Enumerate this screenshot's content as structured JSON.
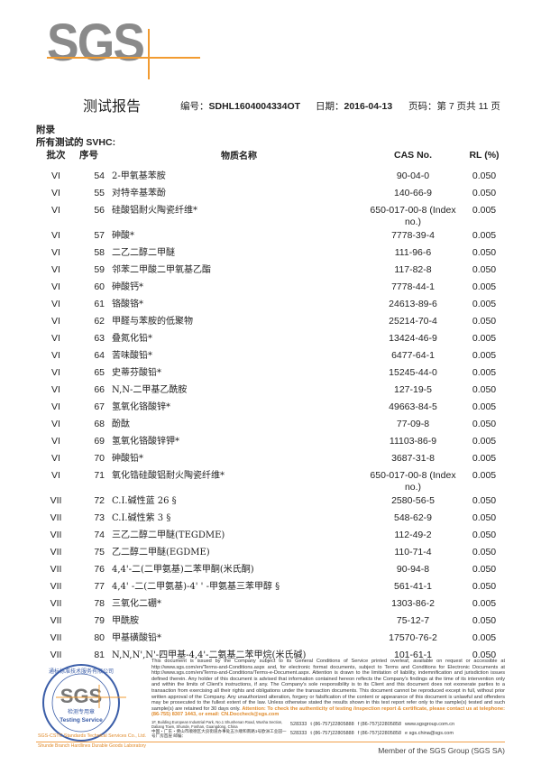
{
  "logo": {
    "text": "SGS",
    "accent_color": "#f29b30",
    "text_color": "#8a8a8a"
  },
  "header": {
    "title": "测试报告",
    "report_no_label": "编号：",
    "report_no": "SDHL1604004334OT",
    "date_label": "日期：",
    "date": "2016-04-13",
    "page_label": "页码：",
    "page_text": "第 7 页共 11 页"
  },
  "section": {
    "appendix": "附录",
    "subtitle": "所有测试的 SVHC:"
  },
  "table": {
    "headers": {
      "batch": "批次",
      "no": "序号",
      "name": "物质名称",
      "cas": "CAS No.",
      "rl": "RL (%)"
    },
    "rows": [
      {
        "batch": "VI",
        "no": "54",
        "name": "2-甲氧基苯胺",
        "cas": "90-04-0",
        "rl": "0.050"
      },
      {
        "batch": "VI",
        "no": "55",
        "name": "对特辛基苯酚",
        "cas": "140-66-9",
        "rl": "0.050"
      },
      {
        "batch": "VI",
        "no": "56",
        "name": "硅酸铝耐火陶瓷纤维*",
        "cas": "650-017-00-8 (Index no.)",
        "rl": "0.005"
      },
      {
        "batch": "VI",
        "no": "57",
        "name": "砷酸*",
        "cas": "7778-39-4",
        "rl": "0.005"
      },
      {
        "batch": "VI",
        "no": "58",
        "name": "二乙二醇二甲醚",
        "cas": "111-96-6",
        "rl": "0.050"
      },
      {
        "batch": "VI",
        "no": "59",
        "name": "邻苯二甲酸二甲氧基乙酯",
        "cas": "117-82-8",
        "rl": "0.050"
      },
      {
        "batch": "VI",
        "no": "60",
        "name": "砷酸钙*",
        "cas": "7778-44-1",
        "rl": "0.005"
      },
      {
        "batch": "VI",
        "no": "61",
        "name": "铬酸铬*",
        "cas": "24613-89-6",
        "rl": "0.005"
      },
      {
        "batch": "VI",
        "no": "62",
        "name": "甲醛与苯胺的低聚物",
        "cas": "25214-70-4",
        "rl": "0.050"
      },
      {
        "batch": "VI",
        "no": "63",
        "name": "叠氮化铅*",
        "cas": "13424-46-9",
        "rl": "0.005"
      },
      {
        "batch": "VI",
        "no": "64",
        "name": "苦味酸铅*",
        "cas": "6477-64-1",
        "rl": "0.005"
      },
      {
        "batch": "VI",
        "no": "65",
        "name": "史蒂芬酸铅*",
        "cas": "15245-44-0",
        "rl": "0.005"
      },
      {
        "batch": "VI",
        "no": "66",
        "name": "N,N-二甲基乙酰胺",
        "cas": "127-19-5",
        "rl": "0.050"
      },
      {
        "batch": "VI",
        "no": "67",
        "name": "氢氧化铬酸锌*",
        "cas": "49663-84-5",
        "rl": "0.005"
      },
      {
        "batch": "VI",
        "no": "68",
        "name": "酚酞",
        "cas": "77-09-8",
        "rl": "0.050"
      },
      {
        "batch": "VI",
        "no": "69",
        "name": "氢氧化铬酸锌钾*",
        "cas": "11103-86-9",
        "rl": "0.005"
      },
      {
        "batch": "VI",
        "no": "70",
        "name": "砷酸铅*",
        "cas": "3687-31-8",
        "rl": "0.005"
      },
      {
        "batch": "VI",
        "no": "71",
        "name": "氧化锆硅酸铝耐火陶瓷纤维*",
        "cas": "650-017-00-8 (Index no.)",
        "rl": "0.005"
      },
      {
        "batch": "VII",
        "no": "72",
        "name": "C.I.碱性蓝 26 §",
        "cas": "2580-56-5",
        "rl": "0.050"
      },
      {
        "batch": "VII",
        "no": "73",
        "name": "C.I.碱性紫 3 §",
        "cas": "548-62-9",
        "rl": "0.050"
      },
      {
        "batch": "VII",
        "no": "74",
        "name": "三乙二醇二甲醚(TEGDME)",
        "cas": "112-49-2",
        "rl": "0.050"
      },
      {
        "batch": "VII",
        "no": "75",
        "name": "乙二醇二甲醚(EGDME)",
        "cas": "110-71-4",
        "rl": "0.050"
      },
      {
        "batch": "VII",
        "no": "76",
        "name": "4,4'-二(二甲氨基)二苯甲酮(米氏酮)",
        "cas": "90-94-8",
        "rl": "0.050"
      },
      {
        "batch": "VII",
        "no": "77",
        "name": "4,4' -二(二甲氨基)-4' ' -甲氨基三苯甲醇 §",
        "cas": "561-41-1",
        "rl": "0.050"
      },
      {
        "batch": "VII",
        "no": "78",
        "name": "三氧化二硼*",
        "cas": "1303-86-2",
        "rl": "0.005"
      },
      {
        "batch": "VII",
        "no": "79",
        "name": "甲酰胺",
        "cas": "75-12-7",
        "rl": "0.050"
      },
      {
        "batch": "VII",
        "no": "80",
        "name": "甲基磺酸铅*",
        "cas": "17570-76-2",
        "rl": "0.005"
      },
      {
        "batch": "VII",
        "no": "81",
        "name": "N,N,N',N'-四甲基-4,4'-二氨基二苯甲烷(米氏碱)",
        "cas": "101-61-1",
        "rl": "0.050"
      }
    ]
  },
  "stamp": {
    "ring_text": "通标标准技术服务有限公司",
    "logo": "SGS",
    "seal_cn": "检测专用章",
    "seal_en": "Testing Service",
    "lab_line1": "SGS-CSTC Standards Technical Services Co., Ltd.",
    "lab_line2": "Shunde Branch Hardlines Durable Goods Laboratory"
  },
  "footer": {
    "legal": "This document is issued by the Company subject to its General Conditions of Service printed overleaf, available on request or accessible at http://www.sgs.com/en/Terms-and-Conditions.aspx and, for electronic format documents, subject to Terms and Conditions for Electronic Documents at http://www.sgs.com/en/Terms-and-Conditions/Terms-e-Document.aspx. Attention is drawn to the limitation of liability, indemnification and jurisdiction issues defined therein. Any holder of this document is advised that information contained hereon reflects the Company's findings at the time of its intervention only and within the limits of Client's instructions, if any. The Company's sole responsibility is to its Client and this document does not exonerate parties to a transaction from exercising all their rights and obligations under the transaction documents. This document cannot be reproduced except in full, without prior written approval of the Company. Any unauthorized alteration, forgery or falsification of the content or appearance of this document is unlawful and offenders may be prosecuted to the fullest extent of the law. Unless otherwise stated the results shown in this test report refer only to the sample(s) tested and such sample(s) are retained for 30 days only.",
    "attention": "Attention: To check the authenticity of testing /inspection report & certificate, please contact us at telephone: (86-755) 8307 1443, or email: CN.Doccheck@sgs.com",
    "address_en": "1F, Building European Industrial Park, No.1 Shunhenan Road, Wusha Section, Daliang Town, Shunde, Foshan, Guangdong, China",
    "address_cn": "中国・广东・佛山市顺德区大良街道办事处五沙顺和南路1号欧洲工业园一号厂房首层 邮编：",
    "postcode": "528333",
    "tel": "t (86-757)22805888",
    "fax": "f (86-757)22805858",
    "web": "www.sgsgroup.com.cn",
    "email": "e sgs.china@sgs.com",
    "member": "Member of the SGS Group (SGS SA)"
  }
}
